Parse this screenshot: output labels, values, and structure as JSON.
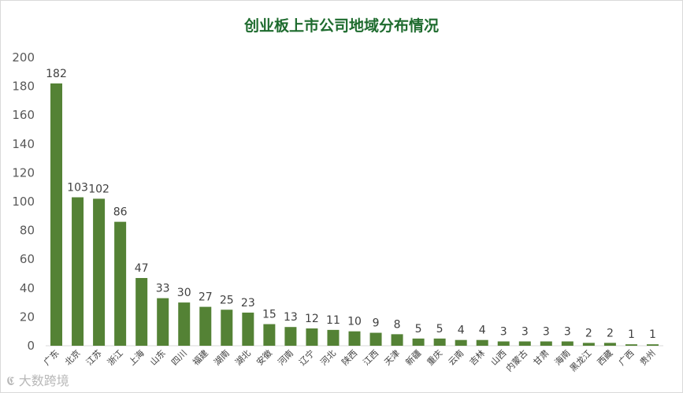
{
  "chart_data": {
    "type": "bar",
    "title": "创业板上市公司地域分布情况",
    "xlabel": "",
    "ylabel": "",
    "ylim": [
      0,
      200
    ],
    "y_ticks": [
      0,
      20,
      40,
      60,
      80,
      100,
      120,
      140,
      160,
      180,
      200
    ],
    "grid": false,
    "legend": "none",
    "bar_color": "#548235",
    "categories": [
      "广东",
      "北京",
      "江苏",
      "浙江",
      "上海",
      "山东",
      "四川",
      "福建",
      "湖南",
      "湖北",
      "安徽",
      "河南",
      "辽宁",
      "河北",
      "陕西",
      "江西",
      "天津",
      "新疆",
      "重庆",
      "云南",
      "吉林",
      "山西",
      "内蒙古",
      "甘肃",
      "海南",
      "黑龙江",
      "西藏",
      "广西",
      "贵州"
    ],
    "values": [
      182,
      103,
      102,
      86,
      47,
      33,
      30,
      27,
      25,
      23,
      15,
      13,
      12,
      11,
      10,
      9,
      8,
      5,
      5,
      4,
      4,
      3,
      3,
      3,
      3,
      2,
      2,
      1,
      1
    ]
  },
  "watermark": "大数跨境"
}
